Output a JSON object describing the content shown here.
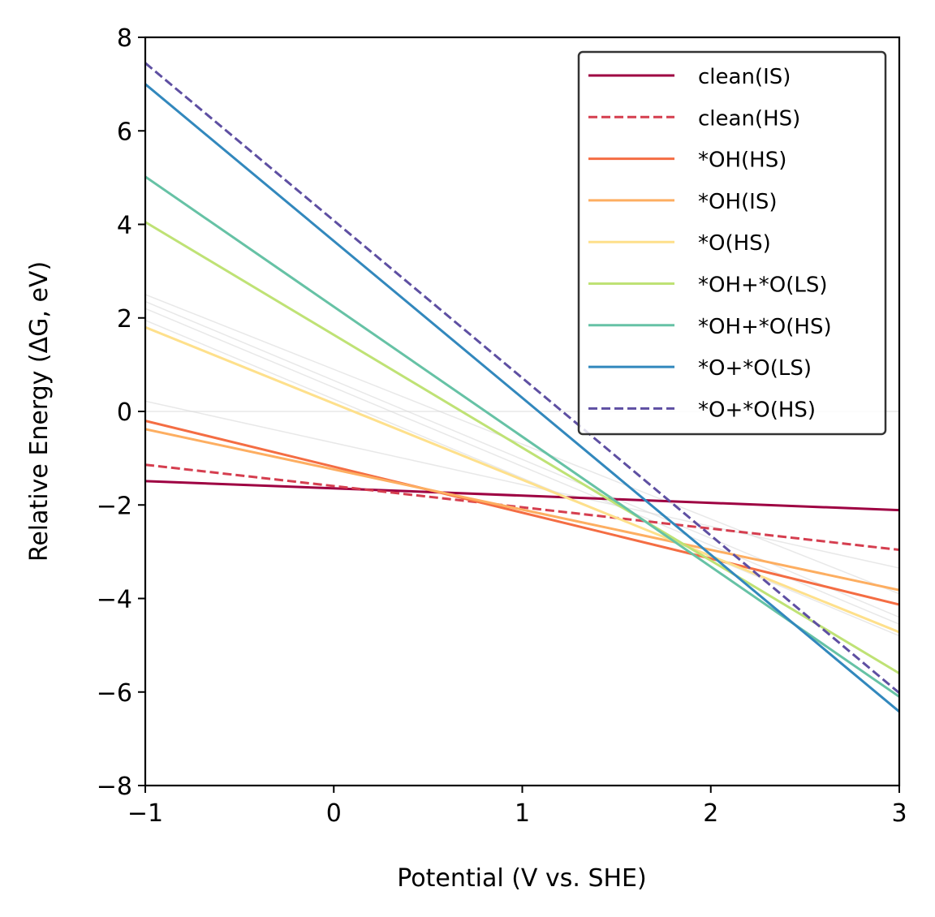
{
  "chart_data": {
    "type": "line",
    "title": "",
    "xlabel": "Potential (V vs. SHE)",
    "ylabel": "Relative Energy (ΔG, eV)",
    "xlim": [
      -1,
      3
    ],
    "ylim": [
      -8,
      8
    ],
    "xticks": [
      -1,
      0,
      1,
      2,
      3
    ],
    "yticks": [
      -8,
      -6,
      -4,
      -2,
      0,
      2,
      4,
      6,
      8
    ],
    "xtick_labels": [
      "−1",
      "0",
      "1",
      "2",
      "3"
    ],
    "ytick_labels": [
      "−8",
      "−6",
      "−4",
      "−2",
      "0",
      "2",
      "4",
      "6",
      "8"
    ],
    "grid": false,
    "legend_position": "top-right",
    "series": [
      {
        "name": "clean(IS)",
        "color": "#9e0142",
        "dash": "solid",
        "x": [
          -1,
          3
        ],
        "y": [
          -1.49,
          -2.11
        ]
      },
      {
        "name": "clean(HS)",
        "color": "#d53e4f",
        "dash": "dashed",
        "x": [
          -1,
          3
        ],
        "y": [
          -1.14,
          -2.96
        ]
      },
      {
        "name": "*OH(HS)",
        "color": "#f46d43",
        "dash": "solid",
        "x": [
          -1,
          3
        ],
        "y": [
          -0.2,
          -4.13
        ]
      },
      {
        "name": "*OH(IS)",
        "color": "#fdae61",
        "dash": "solid",
        "x": [
          -1,
          3
        ],
        "y": [
          -0.38,
          -3.82
        ]
      },
      {
        "name": "*O(HS)",
        "color": "#fee08b",
        "dash": "solid",
        "x": [
          -1,
          3
        ],
        "y": [
          1.8,
          -4.72
        ]
      },
      {
        "name": "*OH+*O(LS)",
        "color": "#bfe275",
        "dash": "solid",
        "x": [
          -1,
          3
        ],
        "y": [
          4.05,
          -5.6
        ]
      },
      {
        "name": "*OH+*O(HS)",
        "color": "#66c2a5",
        "dash": "solid",
        "x": [
          -1,
          3
        ],
        "y": [
          5.02,
          -6.1
        ]
      },
      {
        "name": "*O+*O(LS)",
        "color": "#3288bd",
        "dash": "solid",
        "x": [
          -1,
          3
        ],
        "y": [
          7.0,
          -6.42
        ]
      },
      {
        "name": "*O+*O(HS)",
        "color": "#5e4fa2",
        "dash": "dashed",
        "x": [
          -1,
          3
        ],
        "y": [
          7.45,
          -6.02
        ]
      }
    ],
    "background_lines": [
      {
        "color": "#d9d9d9",
        "x": [
          -1,
          3
        ],
        "y": [
          2.5,
          -3.9
        ]
      },
      {
        "color": "#d9d9d9",
        "x": [
          -1,
          3
        ],
        "y": [
          2.35,
          -4.4
        ]
      },
      {
        "color": "#d9d9d9",
        "x": [
          -1,
          3
        ],
        "y": [
          2.2,
          -4.55
        ]
      },
      {
        "color": "#d9d9d9",
        "x": [
          -1,
          3
        ],
        "y": [
          1.95,
          -4.8
        ]
      },
      {
        "color": "#d9d9d9",
        "x": [
          -1,
          3
        ],
        "y": [
          0.22,
          -3.35
        ]
      },
      {
        "color": "#d9d9d9",
        "x": [
          -1,
          3
        ],
        "y": [
          0.0,
          0.0
        ]
      }
    ]
  }
}
